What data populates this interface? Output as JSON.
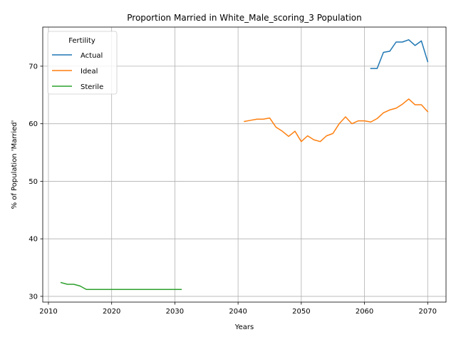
{
  "chart_data": {
    "type": "line",
    "title": "Proportion Married in White_Male_scoring_3 Population",
    "xlabel": "Years",
    "ylabel": "% of Population 'Married'",
    "xlim": [
      2009.1,
      2072.9
    ],
    "ylim": [
      29.0,
      76.8
    ],
    "x_ticks": [
      2010,
      2020,
      2030,
      2040,
      2050,
      2060,
      2070
    ],
    "y_ticks": [
      30,
      40,
      50,
      60,
      70
    ],
    "grid": true,
    "legend": {
      "title": "Fertility",
      "position": "top-left"
    },
    "series": [
      {
        "name": "Actual",
        "color": "#1f77b4",
        "x": [
          2061,
          2062,
          2063,
          2064,
          2065,
          2066,
          2067,
          2068,
          2069,
          2070
        ],
        "y": [
          69.6,
          69.6,
          72.4,
          72.6,
          74.2,
          74.2,
          74.6,
          73.6,
          74.4,
          70.8
        ]
      },
      {
        "name": "Ideal",
        "color": "#ff7f0e",
        "x": [
          2041,
          2042,
          2043,
          2044,
          2045,
          2046,
          2047,
          2048,
          2049,
          2050,
          2051,
          2052,
          2053,
          2054,
          2055,
          2056,
          2057,
          2058,
          2059,
          2060,
          2061,
          2062,
          2063,
          2064,
          2065,
          2066,
          2067,
          2068,
          2069,
          2070
        ],
        "y": [
          60.4,
          60.6,
          60.8,
          60.8,
          61.0,
          59.4,
          58.7,
          57.8,
          58.7,
          56.9,
          57.9,
          57.2,
          56.9,
          57.9,
          58.3,
          60.0,
          61.2,
          60.0,
          60.5,
          60.5,
          60.3,
          60.9,
          61.9,
          62.4,
          62.7,
          63.4,
          64.3,
          63.3,
          63.3,
          62.1
        ]
      },
      {
        "name": "Sterile",
        "color": "#2ca02c",
        "x": [
          2012,
          2013,
          2014,
          2015,
          2016,
          2017,
          2018,
          2019,
          2020,
          2021,
          2022,
          2023,
          2024,
          2025,
          2026,
          2027,
          2028,
          2029,
          2030,
          2031
        ],
        "y": [
          32.4,
          32.1,
          32.1,
          31.8,
          31.2,
          31.2,
          31.2,
          31.2,
          31.2,
          31.2,
          31.2,
          31.2,
          31.2,
          31.2,
          31.2,
          31.2,
          31.2,
          31.2,
          31.2,
          31.2
        ]
      }
    ]
  }
}
